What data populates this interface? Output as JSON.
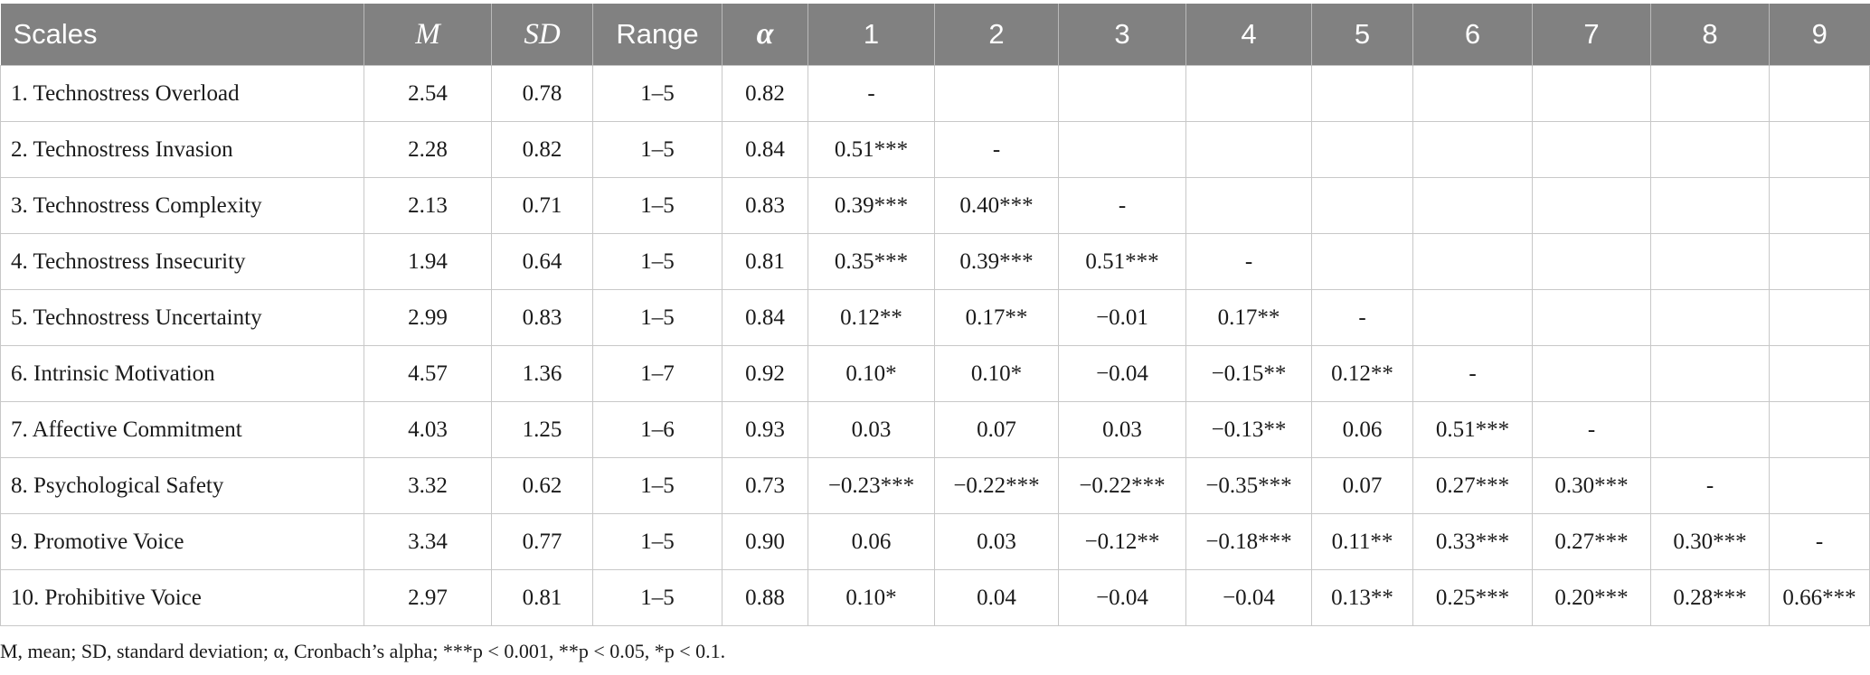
{
  "table": {
    "headers": [
      {
        "label": "Scales",
        "style": "normal"
      },
      {
        "label": "M",
        "style": "italic"
      },
      {
        "label": "SD",
        "style": "italic"
      },
      {
        "label": "Range",
        "style": "normal"
      },
      {
        "label": "α",
        "style": "alpha"
      },
      {
        "label": "1",
        "style": "normal"
      },
      {
        "label": "2",
        "style": "normal"
      },
      {
        "label": "3",
        "style": "normal"
      },
      {
        "label": "4",
        "style": "normal"
      },
      {
        "label": "5",
        "style": "normal"
      },
      {
        "label": "6",
        "style": "normal"
      },
      {
        "label": "7",
        "style": "normal"
      },
      {
        "label": "8",
        "style": "normal"
      },
      {
        "label": "9",
        "style": "normal"
      }
    ],
    "rows": [
      [
        "1. Technostress Overload",
        "2.54",
        "0.78",
        "1–5",
        "0.82",
        "-",
        "",
        "",
        "",
        "",
        "",
        "",
        "",
        ""
      ],
      [
        "2. Technostress Invasion",
        "2.28",
        "0.82",
        "1–5",
        "0.84",
        "0.51***",
        "-",
        "",
        "",
        "",
        "",
        "",
        "",
        ""
      ],
      [
        "3. Technostress Complexity",
        "2.13",
        "0.71",
        "1–5",
        "0.83",
        "0.39***",
        "0.40***",
        "-",
        "",
        "",
        "",
        "",
        "",
        ""
      ],
      [
        "4. Technostress Insecurity",
        "1.94",
        "0.64",
        "1–5",
        "0.81",
        "0.35***",
        "0.39***",
        "0.51***",
        "-",
        "",
        "",
        "",
        "",
        ""
      ],
      [
        "5. Technostress Uncertainty",
        "2.99",
        "0.83",
        "1–5",
        "0.84",
        "0.12**",
        "0.17**",
        "−0.01",
        "0.17**",
        "-",
        "",
        "",
        "",
        ""
      ],
      [
        "6. Intrinsic Motivation",
        "4.57",
        "1.36",
        "1–7",
        "0.92",
        "0.10*",
        "0.10*",
        "−0.04",
        "−0.15**",
        "0.12**",
        "-",
        "",
        "",
        ""
      ],
      [
        "7. Affective Commitment",
        "4.03",
        "1.25",
        "1–6",
        "0.93",
        "0.03",
        "0.07",
        "0.03",
        "−0.13**",
        "0.06",
        "0.51***",
        "-",
        "",
        ""
      ],
      [
        "8. Psychological Safety",
        "3.32",
        "0.62",
        "1–5",
        "0.73",
        "−0.23***",
        "−0.22***",
        "−0.22***",
        "−0.35***",
        "0.07",
        "0.27***",
        "0.30***",
        "-",
        ""
      ],
      [
        "9. Promotive Voice",
        "3.34",
        "0.77",
        "1–5",
        "0.90",
        "0.06",
        "0.03",
        "−0.12**",
        "−0.18***",
        "0.11**",
        "0.33***",
        "0.27***",
        "0.30***",
        "-"
      ],
      [
        "10. Prohibitive Voice",
        "2.97",
        "0.81",
        "1–5",
        "0.88",
        "0.10*",
        "0.04",
        "−0.04",
        "−0.04",
        "0.13**",
        "0.25***",
        "0.20***",
        "0.28***",
        "0.66***"
      ]
    ]
  },
  "note": "M, mean; SD, standard deviation; α, Cronbach’s alpha; ***p < 0.001, **p < 0.05, *p < 0.1.",
  "colors": {
    "header_bg": "#818181",
    "header_text": "#ffffff",
    "grid": "#c8c8c8"
  }
}
